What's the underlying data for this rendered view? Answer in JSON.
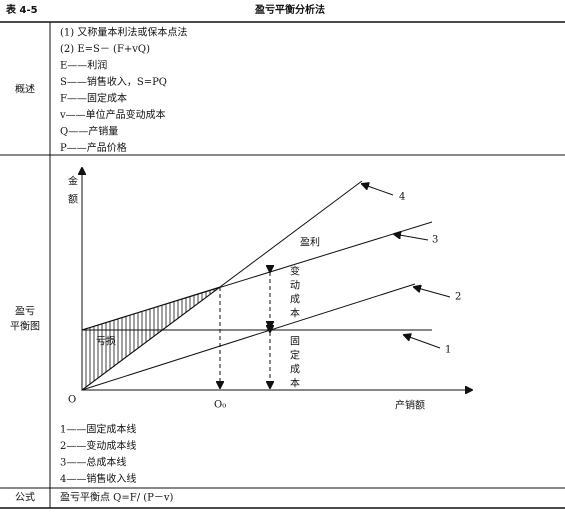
{
  "header": {
    "label": "表 4-5",
    "title": "盈亏平衡分析法"
  },
  "overview": {
    "label": "概述",
    "lines": [
      "(1) 又称量本利法或保本点法",
      "(2) E=S－ (F+vQ)",
      "E——利润",
      "S——销售收入，S=PQ",
      "F——固定成本",
      "v——单位产品变动成本",
      "Q——产销量",
      "P——产品价格"
    ]
  },
  "chart": {
    "label": [
      "盈亏",
      "平衡图"
    ],
    "diagram": {
      "y_axis": [
        "金",
        "额"
      ],
      "origin": "O",
      "breakeven": "O₀",
      "x_axis": "产销额",
      "profit": "盈利",
      "loss": "亏损",
      "variable_cost": [
        "变",
        "动",
        "成",
        "本"
      ],
      "fixed_cost": [
        "固",
        "定",
        "成",
        "本"
      ],
      "line_numbers": [
        "1",
        "2",
        "3",
        "4"
      ]
    },
    "legend": [
      "1——固定成本线",
      "2——变动成本线",
      "3——总成本线",
      "4——销售收入线"
    ]
  },
  "formula": {
    "label": "公式",
    "text": "盈亏平衡点 Q=F/ (P－v)"
  }
}
